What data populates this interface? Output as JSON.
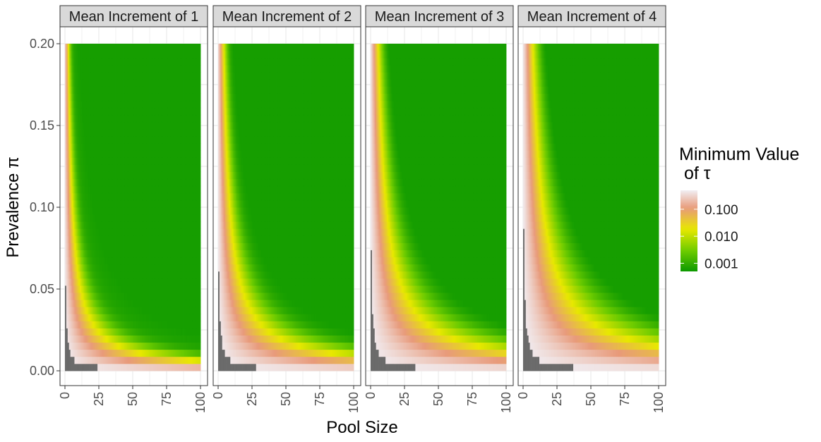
{
  "chart_data": {
    "type": "heatmap",
    "xlabel": "Pool Size",
    "ylabel": "Prevalence π",
    "xlim": [
      0,
      100
    ],
    "ylim": [
      0,
      0.2
    ],
    "x_ticks": [
      "0",
      "25",
      "50",
      "75",
      "100"
    ],
    "y_ticks": [
      "0.00",
      "0.05",
      "0.10",
      "0.15",
      "0.20"
    ],
    "grid": true,
    "facets": [
      {
        "label": "Mean Increment of 1",
        "increment": 1
      },
      {
        "label": "Mean Increment of 2",
        "increment": 2
      },
      {
        "label": "Mean Increment of 3",
        "increment": 3
      },
      {
        "label": "Mean Increment of 4",
        "increment": 4
      }
    ],
    "legend": {
      "title_line1": "Minimum Value",
      "title_line2": " of τ",
      "labels": [
        "0.100",
        "0.010",
        "0.001"
      ],
      "values": [
        0.1,
        0.01,
        0.001
      ],
      "range": [
        0.0005,
        0.5
      ],
      "placement": "right",
      "scale": "log"
    },
    "colors": {
      "high": "#f1eef3",
      "mid_high": "#e89a7a",
      "mid": "#e8e800",
      "mid_low": "#6ccb00",
      "low": "#0c9900",
      "na": "#6b6b6b"
    }
  }
}
